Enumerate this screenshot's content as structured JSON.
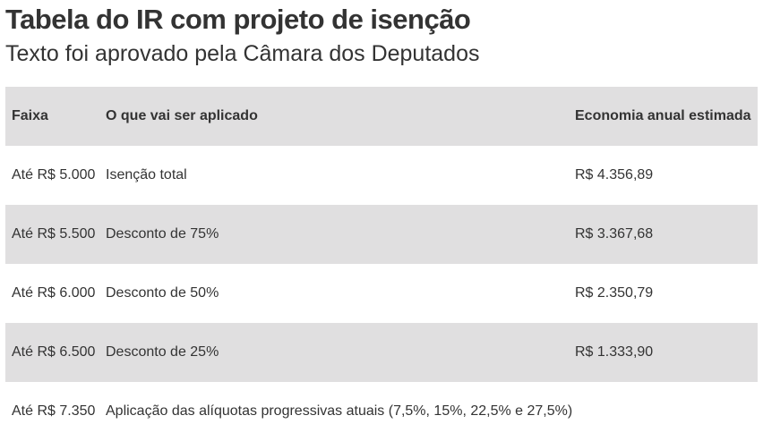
{
  "title": "Tabela do IR com projeto de isenção",
  "subtitle": "Texto foi aprovado pela Câmara dos Deputados",
  "chart_data": {
    "type": "table",
    "columns": [
      "Faixa",
      "O que vai ser aplicado",
      "Economia anual estimada"
    ],
    "rows": [
      [
        "Até R$ 5.000",
        "Isenção total",
        "R$ 4.356,89"
      ],
      [
        "Até R$ 5.500",
        "Desconto de 75%",
        "R$ 3.367,68"
      ],
      [
        "Até R$ 6.000",
        "Desconto de 50%",
        "R$ 2.350,79"
      ],
      [
        "Até R$ 6.500",
        "Desconto de 25%",
        "R$ 1.333,90"
      ],
      [
        "Até R$ 7.350",
        "Aplicação das alíquotas progressivas atuais (7,5%, 15%, 22,5% e 27,5%)",
        ""
      ]
    ]
  },
  "colors": {
    "header_bg": "#e0dfe0",
    "stripe_bg": "#e0dfe0",
    "text": "#333333"
  }
}
